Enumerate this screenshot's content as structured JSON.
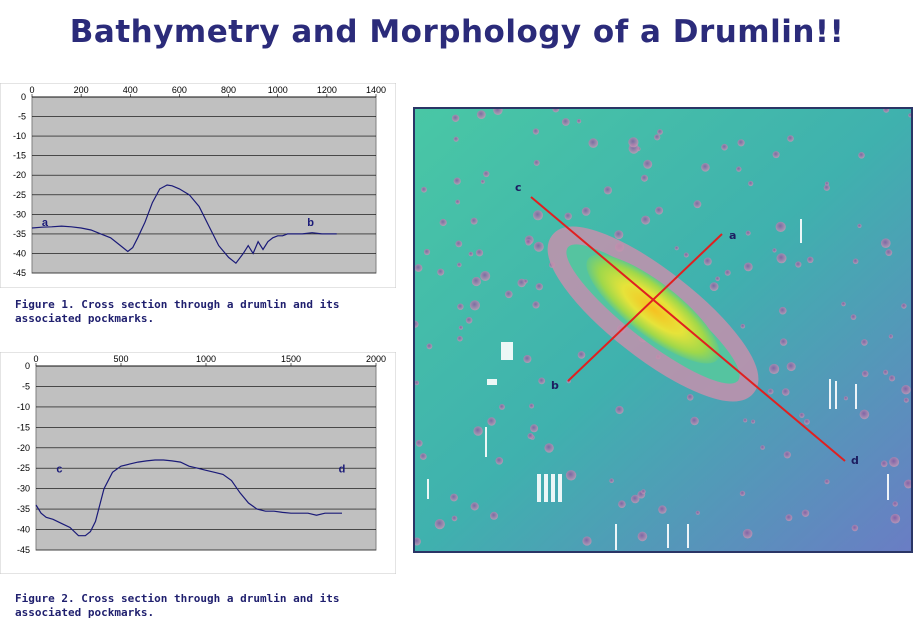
{
  "title": "Bathymetry and Morphology of a Drumlin!!",
  "chart_data": [
    {
      "type": "line",
      "xlim": [
        0,
        1400
      ],
      "ylim": [
        -45,
        0
      ],
      "x_ticks": [
        "0",
        "200",
        "400",
        "600",
        "800",
        "1000",
        "1200",
        "1400"
      ],
      "y_ticks": [
        "0",
        "-5",
        "-10",
        "-15",
        "-20",
        "-25",
        "-30",
        "-35",
        "-40",
        "-45"
      ],
      "grid": true,
      "annotations": [
        {
          "text": "a",
          "x": 40,
          "y": -33
        },
        {
          "text": "b",
          "x": 1120,
          "y": -33
        }
      ],
      "series": [
        {
          "x": [
            0,
            40,
            80,
            120,
            160,
            200,
            240,
            280,
            320,
            360,
            390,
            410,
            430,
            460,
            490,
            520,
            550,
            570,
            600,
            640,
            680,
            720,
            760,
            800,
            830,
            860,
            880,
            900,
            920,
            940,
            960,
            980,
            1000,
            1020,
            1040,
            1060,
            1100,
            1140,
            1180,
            1220,
            1240
          ],
          "y": [
            -33.5,
            -33.3,
            -33.2,
            -33,
            -33.2,
            -33.5,
            -34,
            -35,
            -36,
            -38,
            -39.5,
            -38.5,
            -36,
            -32,
            -27,
            -23.5,
            -22.5,
            -22.7,
            -23.5,
            -25,
            -28,
            -33,
            -38,
            -41,
            -42.5,
            -40,
            -38,
            -40,
            -37,
            -39,
            -37,
            -36,
            -35.5,
            -35.5,
            -35,
            -35,
            -35,
            -34.7,
            -35,
            -35,
            -35
          ]
        }
      ]
    },
    {
      "type": "line",
      "xlim": [
        0,
        2000
      ],
      "ylim": [
        -45,
        0
      ],
      "x_ticks": [
        "0",
        "500",
        "1000",
        "1500",
        "2000"
      ],
      "y_ticks": [
        "0",
        "-5",
        "-10",
        "-15",
        "-20",
        "-25",
        "-30",
        "-35",
        "-40",
        "-45"
      ],
      "grid": true,
      "annotations": [
        {
          "text": "c",
          "x": 120,
          "y": -26
        },
        {
          "text": "d",
          "x": 1780,
          "y": -26
        }
      ],
      "series": [
        {
          "x": [
            0,
            30,
            60,
            100,
            150,
            200,
            250,
            290,
            320,
            350,
            400,
            450,
            500,
            550,
            600,
            650,
            700,
            750,
            800,
            850,
            900,
            950,
            1000,
            1050,
            1100,
            1150,
            1200,
            1250,
            1300,
            1350,
            1400,
            1450,
            1500,
            1550,
            1600,
            1650,
            1700,
            1750,
            1800
          ],
          "y": [
            -34,
            -36,
            -37,
            -37.5,
            -38.5,
            -39.5,
            -41.5,
            -41.5,
            -40.5,
            -38,
            -30,
            -26,
            -24.5,
            -24,
            -23.5,
            -23.2,
            -23,
            -23,
            -23.2,
            -23.5,
            -24.5,
            -25,
            -25.5,
            -26,
            -26.5,
            -28,
            -31,
            -33.5,
            -35,
            -35.5,
            -35.5,
            -35.8,
            -36,
            -36,
            -36,
            -36.5,
            -36,
            -36,
            -36
          ]
        }
      ]
    }
  ],
  "captions": {
    "fig1_line1": "Figure 1. Cross section through a drumlin and its",
    "fig1_line2": "associated pockmarks.",
    "fig2_line1": "Figure 2. Cross section through a drumlin and its",
    "fig2_line2": "associated pockmarks."
  },
  "map": {
    "labels": {
      "a": "a",
      "b": "b",
      "c": "c",
      "d": "d"
    },
    "colors": {
      "background": "#3fb3a8",
      "drumlin_core": "#f2e02a",
      "drumlin_rim": "#c78fa8",
      "profile_line": "#e02020"
    }
  }
}
